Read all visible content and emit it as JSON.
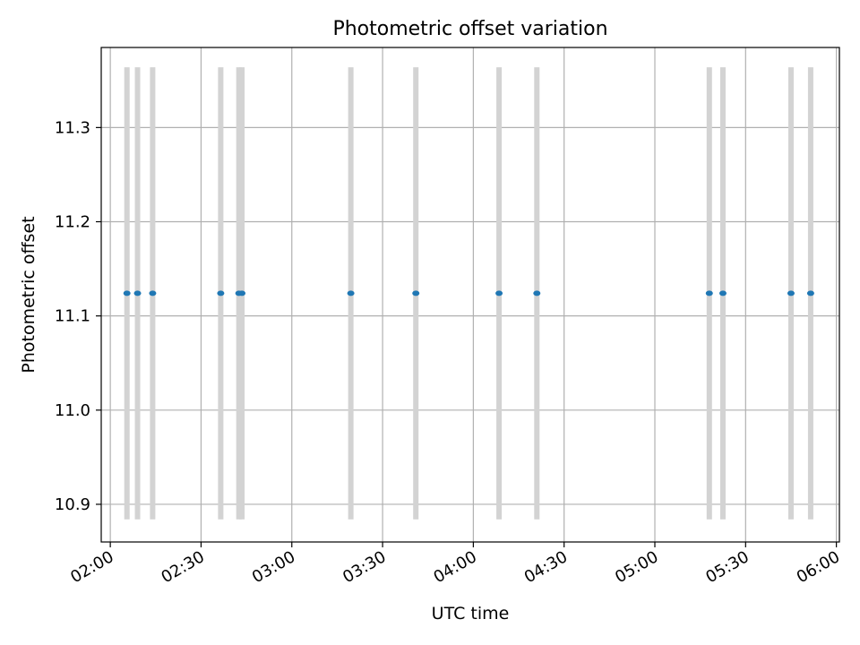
{
  "chart_data": {
    "type": "scatter",
    "title": "Photometric offset variation",
    "xlabel": "UTC time",
    "ylabel": "Photometric offset",
    "x_axis_type": "time",
    "xlim": [
      "01:57",
      "06:01"
    ],
    "ylim": [
      10.86,
      11.385
    ],
    "xticks": [
      "02:00",
      "02:30",
      "03:00",
      "03:30",
      "04:00",
      "04:30",
      "05:00",
      "05:30",
      "06:00"
    ],
    "yticks": [
      10.9,
      11.0,
      11.1,
      11.2,
      11.3
    ],
    "ytick_labels": [
      "10.9",
      "11.0",
      "11.1",
      "11.2",
      "11.3"
    ],
    "grid": true,
    "legend": "none",
    "series": [
      {
        "marker_color": "#1f77b4",
        "errorbar_color": "#d3d3d3",
        "points": [
          {
            "x": "02:05:30",
            "y": 11.124,
            "yerr": 0.24
          },
          {
            "x": "02:09:00",
            "y": 11.124,
            "yerr": 0.24
          },
          {
            "x": "02:14:00",
            "y": 11.124,
            "yerr": 0.24
          },
          {
            "x": "02:36:30",
            "y": 11.124,
            "yerr": 0.24
          },
          {
            "x": "02:42:30",
            "y": 11.124,
            "yerr": 0.24
          },
          {
            "x": "02:43:30",
            "y": 11.124,
            "yerr": 0.24
          },
          {
            "x": "03:19:30",
            "y": 11.124,
            "yerr": 0.24
          },
          {
            "x": "03:41:00",
            "y": 11.124,
            "yerr": 0.24
          },
          {
            "x": "04:08:30",
            "y": 11.124,
            "yerr": 0.24
          },
          {
            "x": "04:21:00",
            "y": 11.124,
            "yerr": 0.24
          },
          {
            "x": "05:18:00",
            "y": 11.124,
            "yerr": 0.24
          },
          {
            "x": "05:22:30",
            "y": 11.124,
            "yerr": 0.24
          },
          {
            "x": "05:45:00",
            "y": 11.124,
            "yerr": 0.24
          },
          {
            "x": "05:51:30",
            "y": 11.124,
            "yerr": 0.24
          }
        ]
      }
    ]
  }
}
